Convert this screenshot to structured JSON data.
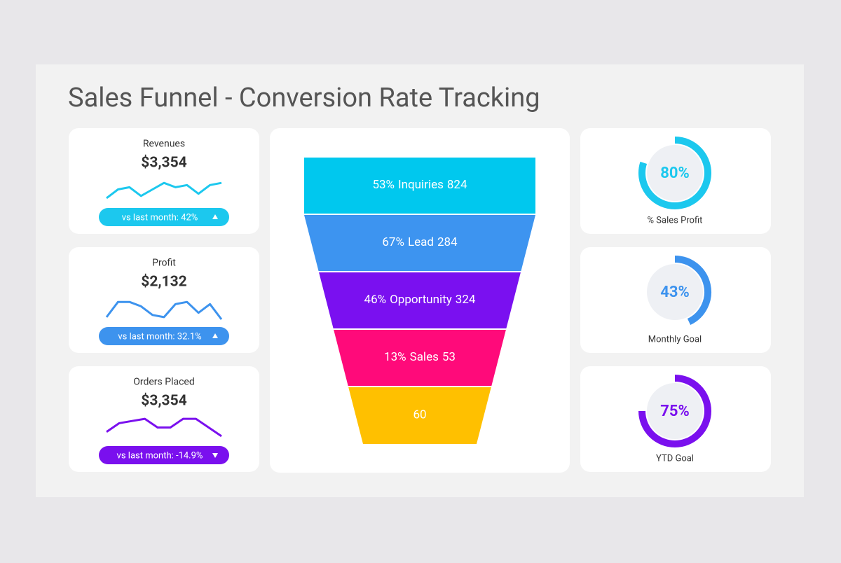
{
  "title": "Sales Funnel - Conversion Rate Tracking",
  "chart_data": [
    {
      "type": "line",
      "title": "Revenues",
      "subtitle": "$3,354",
      "annotation": "vs last month: 42%",
      "trend": "up",
      "color": "#1cc8ee",
      "values": [
        1,
        5,
        6,
        2,
        5,
        8,
        6,
        7,
        3,
        7,
        8
      ],
      "ylim": [
        0,
        10
      ]
    },
    {
      "type": "line",
      "title": "Profit",
      "subtitle": "$2,132",
      "annotation": "vs last month: 32.1%",
      "trend": "up",
      "color": "#3d93ee",
      "values": [
        1,
        8,
        8,
        6,
        2,
        1,
        7,
        8,
        3,
        7,
        0
      ],
      "ylim": [
        0,
        10
      ]
    },
    {
      "type": "line",
      "title": "Orders Placed",
      "subtitle": "$3,354",
      "annotation": "vs last month: -14.9%",
      "trend": "down",
      "color": "#7a10ee",
      "values": [
        3,
        7,
        8,
        9,
        5,
        5,
        9,
        9,
        5,
        1
      ],
      "ylim": [
        0,
        10
      ]
    },
    {
      "type": "funnel",
      "categories": [
        "Inquiries",
        "Lead",
        "Opportunity",
        "Sales",
        null
      ],
      "rates": [
        "53%",
        "67%",
        "46%",
        "13%",
        null
      ],
      "values": [
        824,
        284,
        324,
        53,
        60
      ],
      "colors": [
        "#00c8ee",
        "#3d94f0",
        "#7a10f0",
        "#ff0a7a",
        "#ffc000"
      ]
    },
    {
      "type": "donut",
      "value": 80,
      "value_label": "80%",
      "label": "% Sales Profit",
      "color": "#1cc8ee",
      "ylim": [
        0,
        100
      ]
    },
    {
      "type": "donut",
      "value": 43,
      "value_label": "43%",
      "label": "Monthly Goal",
      "color": "#3d93ee",
      "ylim": [
        0,
        100
      ]
    },
    {
      "type": "donut",
      "value": 75,
      "value_label": "75%",
      "label": "YTD Goal",
      "color": "#7a10ee",
      "ylim": [
        0,
        100
      ]
    }
  ]
}
